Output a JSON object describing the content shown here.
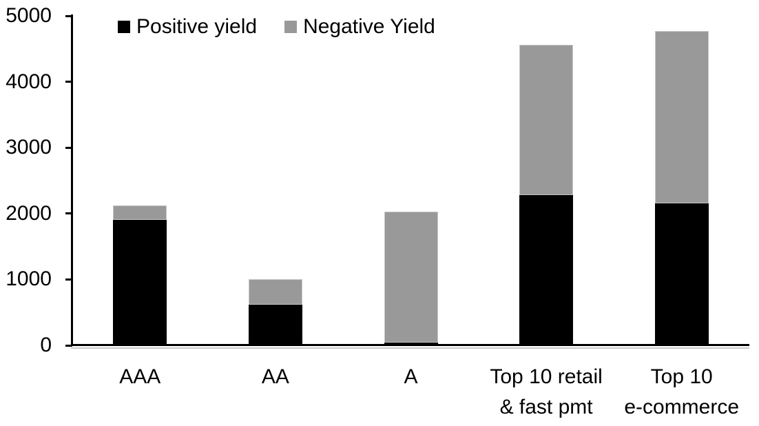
{
  "chart_data": {
    "type": "bar",
    "stacked": true,
    "title": "",
    "xlabel": "",
    "ylabel": "",
    "categories": [
      "AAA",
      "AA",
      "A",
      "Top 10 retail & fast pmt",
      "Top 10 e-commerce"
    ],
    "category_label_lines": [
      [
        "AAA"
      ],
      [
        "AA"
      ],
      [
        "A"
      ],
      [
        "Top 10 retail",
        "& fast pmt"
      ],
      [
        "Top 10",
        "e-commerce"
      ]
    ],
    "series": [
      {
        "name": "Positive yield",
        "color": "#000000",
        "values": [
          1900,
          620,
          40,
          2280,
          2150
        ]
      },
      {
        "name": "Negative Yield",
        "color": "#999999",
        "values": [
          220,
          380,
          1990,
          2280,
          2620
        ]
      }
    ],
    "stack_totals": [
      2120,
      1000,
      2030,
      4560,
      4770
    ],
    "ylim": [
      0,
      5000
    ],
    "yticks": [
      0,
      1000,
      2000,
      3000,
      4000,
      5000
    ],
    "ytick_labels": [
      "0",
      "1000",
      "2000",
      "3000",
      "4000",
      "5000"
    ],
    "grid": "off",
    "legend_position": "top-left-inside"
  },
  "colors": {
    "positive": "#000000",
    "negative": "#999999",
    "axis": "#000000",
    "background": "#ffffff"
  }
}
